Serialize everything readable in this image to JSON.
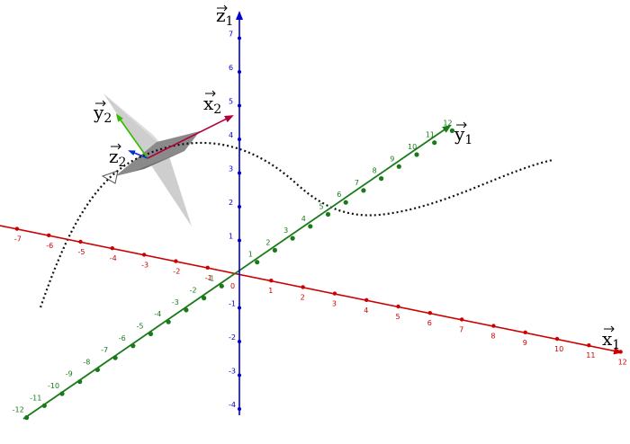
{
  "axes": {
    "x1": {
      "label": "x⃗1",
      "name": "x",
      "sub": "1",
      "color": "#cc0000",
      "ticks": [
        "-7",
        "-6",
        "-5",
        "-4",
        "-3",
        "-2",
        "-1",
        "0",
        "1",
        "2",
        "3",
        "4",
        "5",
        "6",
        "7",
        "8",
        "9",
        "10",
        "11",
        "12"
      ]
    },
    "y1": {
      "label": "y⃗1",
      "name": "y",
      "sub": "1",
      "color": "#1a7a1a",
      "ticks": [
        "-12",
        "-11",
        "-10",
        "-9",
        "-8",
        "-7",
        "-6",
        "-5",
        "-4",
        "-3",
        "-2",
        "-1",
        "0",
        "1",
        "2",
        "3",
        "4",
        "5",
        "6",
        "7",
        "8",
        "9",
        "10",
        "11",
        "12"
      ]
    },
    "z1": {
      "label": "z⃗1",
      "name": "z",
      "sub": "1",
      "color": "#0000cc",
      "ticks": [
        "-4",
        "-3",
        "-2",
        "-1",
        "1",
        "2",
        "3",
        "4",
        "5",
        "6",
        "7"
      ]
    }
  },
  "frame2": {
    "x2": {
      "name": "x",
      "sub": "2",
      "color": "#b0003a"
    },
    "y2": {
      "name": "y",
      "sub": "2",
      "color": "#33bb00"
    },
    "z2": {
      "name": "z",
      "sub": "2",
      "color": "#0033cc"
    }
  },
  "colors": {
    "curve": "#111111",
    "plane": "#bdbdbd",
    "aircraft": "#8a8a8a"
  }
}
